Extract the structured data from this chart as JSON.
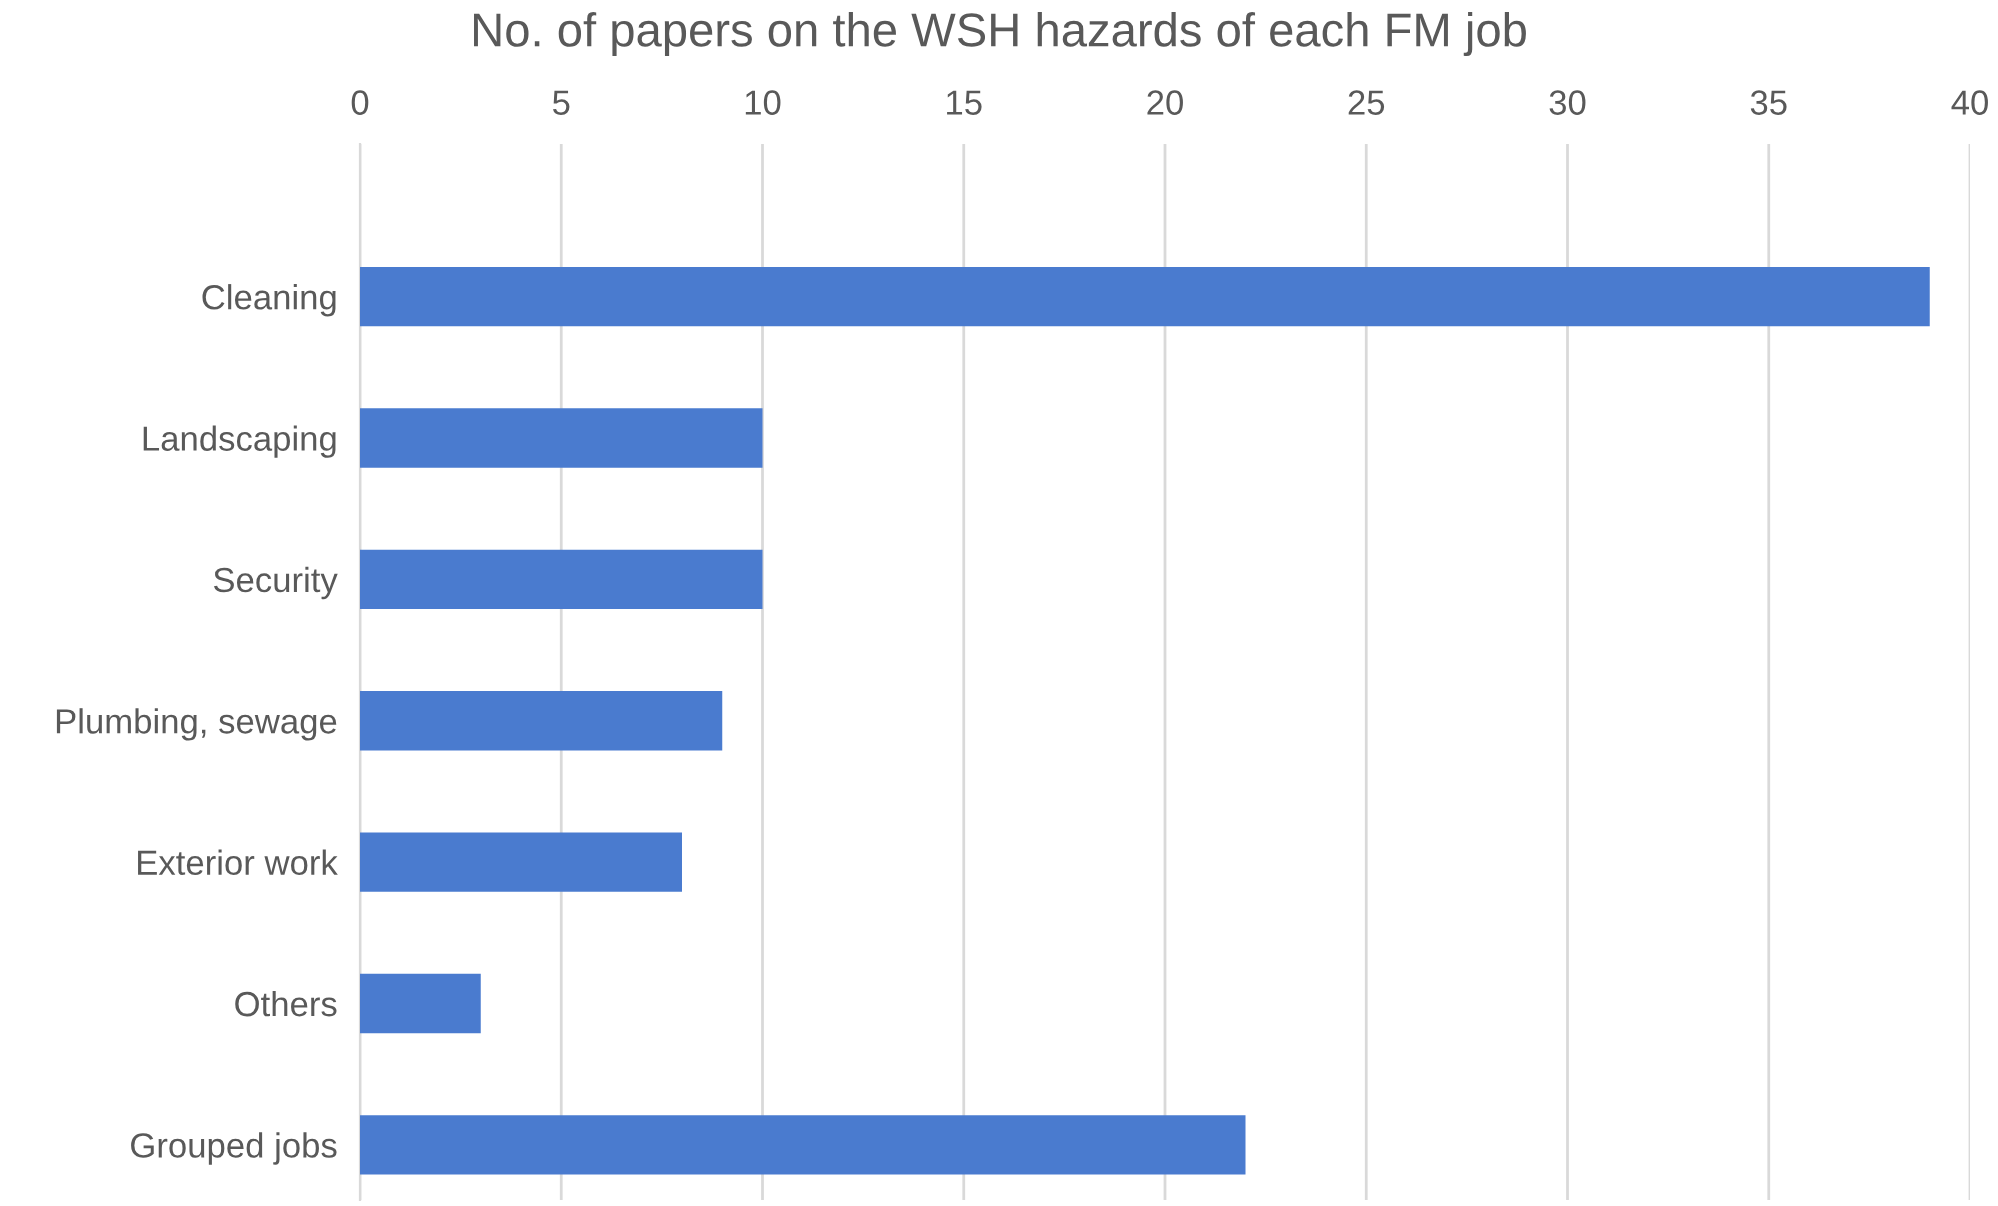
{
  "chart_data": {
    "type": "bar",
    "orientation": "horizontal",
    "title": "No. of papers on the WSH hazards of each FM job",
    "categories": [
      "Cleaning",
      "Landscaping",
      "Security",
      "Plumbing, sewage",
      "Exterior work",
      "Others",
      "Grouped jobs"
    ],
    "values": [
      39,
      10,
      10,
      9,
      8,
      3,
      22
    ],
    "color": "#4a7bcf",
    "xlim": [
      0,
      40
    ],
    "xticks": [
      0,
      5,
      10,
      15,
      20,
      25,
      30,
      35,
      40
    ],
    "grid": "x",
    "legend": false
  }
}
